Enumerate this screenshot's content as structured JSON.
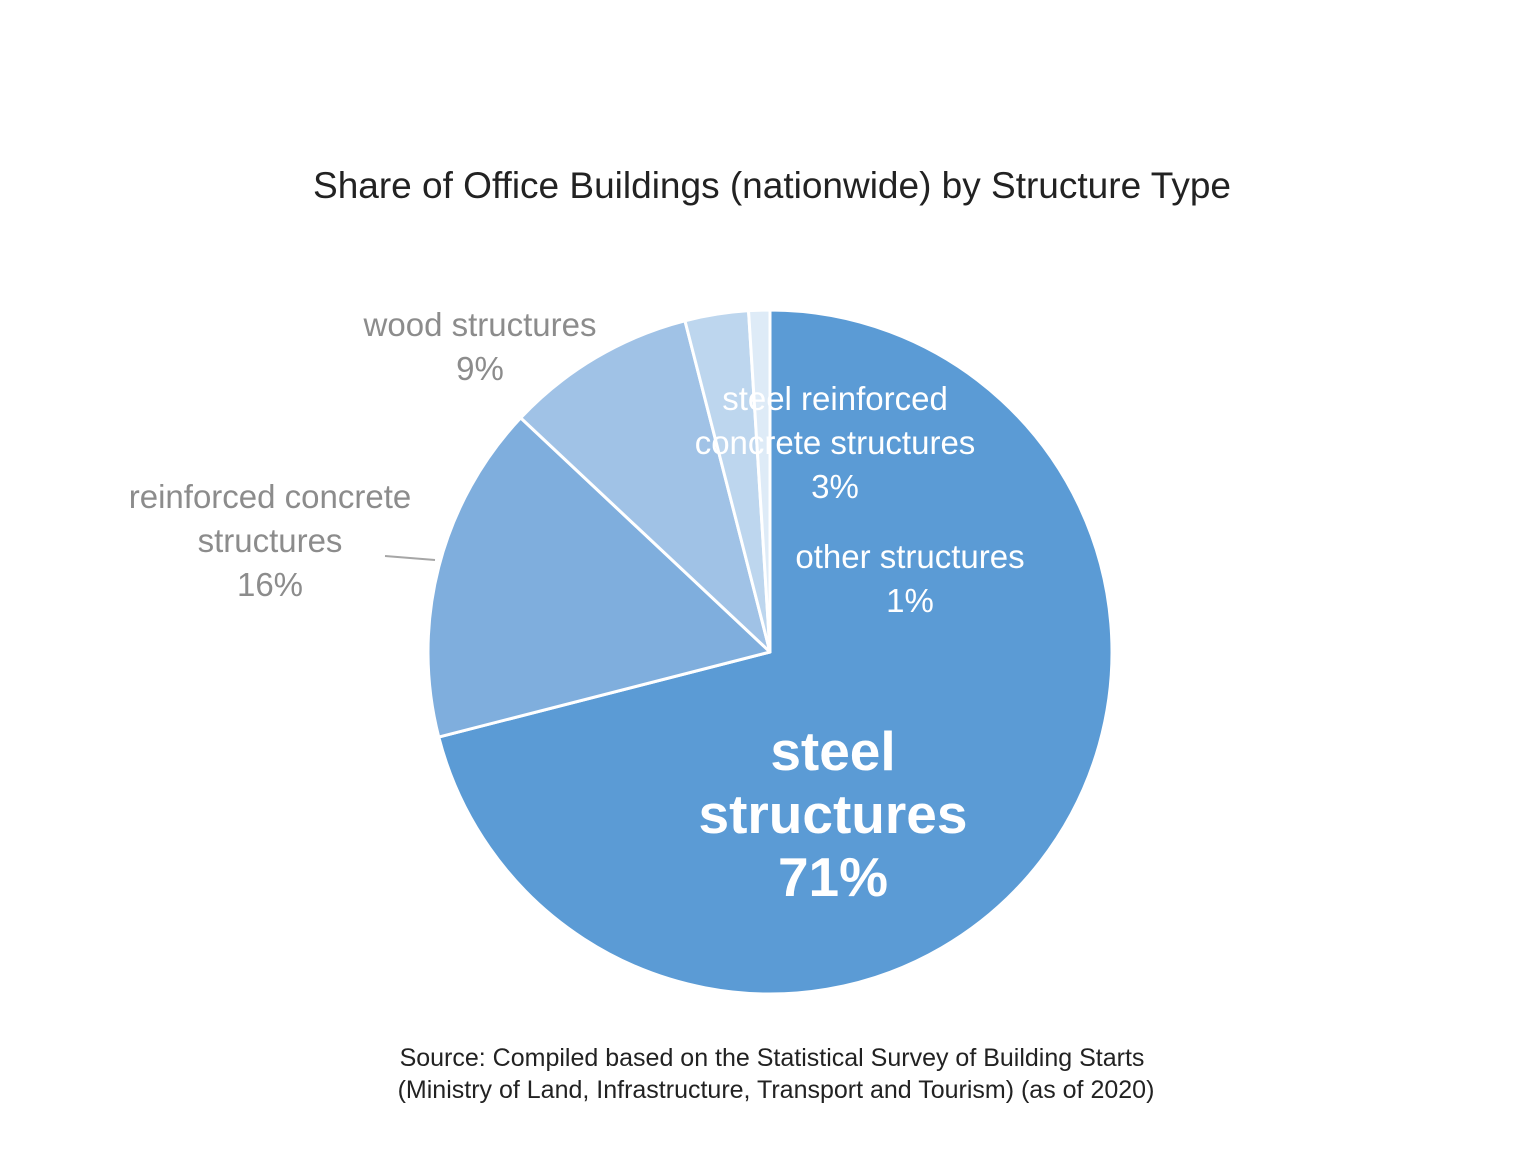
{
  "chart_data": {
    "type": "pie",
    "title": "Share of Office Buildings (nationwide) by Structure Type",
    "unit": "%",
    "slices": [
      {
        "label_lines": [
          "steel",
          "structures"
        ],
        "value": 71,
        "value_label": "71%",
        "color": "#5b9bd5",
        "label_color": "#ffffff",
        "label_style": "bold"
      },
      {
        "label_lines": [
          "reinforced concrete",
          "structures"
        ],
        "value": 16,
        "value_label": "16%",
        "color": "#7faedd",
        "label_color": "#8c8c8c",
        "label_style": "outside"
      },
      {
        "label_lines": [
          "wood structures"
        ],
        "value": 9,
        "value_label": "9%",
        "color": "#a0c2e6",
        "label_color": "#8c8c8c",
        "label_style": "outside"
      },
      {
        "label_lines": [
          "steel reinforced",
          "concrete structures"
        ],
        "value": 3,
        "value_label": "3%",
        "color": "#bdd6ee",
        "label_color": "#ffffff",
        "label_style": "inside"
      },
      {
        "label_lines": [
          "other structures"
        ],
        "value": 1,
        "value_label": "1%",
        "color": "#deebf7",
        "label_color": "#ffffff",
        "label_style": "inside"
      }
    ],
    "start_angle": "12 o'clock",
    "direction": "clockwise",
    "legend": "none"
  },
  "source": {
    "line1": "Source: Compiled based on the Statistical Survey of Building Starts",
    "line2": "(Ministry of Land, Infrastructure, Transport and Tourism) (as of 2020)"
  }
}
